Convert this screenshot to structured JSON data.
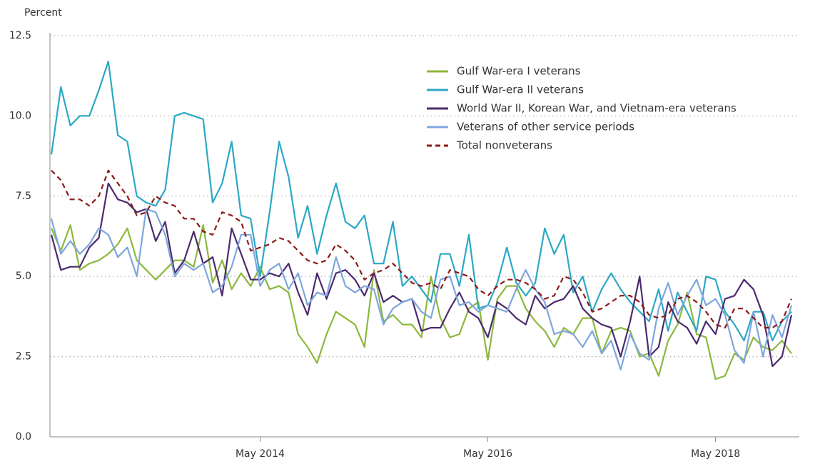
{
  "chart_data": {
    "type": "line",
    "y_label": "Percent",
    "x": [
      "2012-07",
      "2012-08",
      "2012-09",
      "2012-10",
      "2012-11",
      "2012-12",
      "2013-01",
      "2013-02",
      "2013-03",
      "2013-04",
      "2013-05",
      "2013-06",
      "2013-07",
      "2013-08",
      "2013-09",
      "2013-10",
      "2013-11",
      "2013-12",
      "2014-01",
      "2014-02",
      "2014-03",
      "2014-04",
      "2014-05",
      "2014-06",
      "2014-07",
      "2014-08",
      "2014-09",
      "2014-10",
      "2014-11",
      "2014-12",
      "2015-01",
      "2015-02",
      "2015-03",
      "2015-04",
      "2015-05",
      "2015-06",
      "2015-07",
      "2015-08",
      "2015-09",
      "2015-10",
      "2015-11",
      "2015-12",
      "2016-01",
      "2016-02",
      "2016-03",
      "2016-04",
      "2016-05",
      "2016-06",
      "2016-07",
      "2016-08",
      "2016-09",
      "2016-10",
      "2016-11",
      "2016-12",
      "2017-01",
      "2017-02",
      "2017-03",
      "2017-04",
      "2017-05",
      "2017-06",
      "2017-07",
      "2017-08",
      "2017-09",
      "2017-10",
      "2017-11",
      "2017-12",
      "2018-01",
      "2018-02",
      "2018-03",
      "2018-04",
      "2018-05",
      "2018-06",
      "2018-07",
      "2018-08",
      "2018-09",
      "2018-10",
      "2018-11",
      "2018-12",
      "2019-01"
    ],
    "xticks": [
      {
        "value": "2014-05",
        "label": "May 2014"
      },
      {
        "value": "2016-05",
        "label": "May 2016"
      },
      {
        "value": "2018-05",
        "label": "May 2018"
      }
    ],
    "ylim": [
      0,
      12.5
    ],
    "yticks": [
      {
        "value": 0,
        "label": "0.0"
      },
      {
        "value": 2.5,
        "label": "2.5"
      },
      {
        "value": 5,
        "label": "5.0"
      },
      {
        "value": 7.5,
        "label": "7.5"
      },
      {
        "value": 10,
        "label": "10.0"
      },
      {
        "value": 12.5,
        "label": "12.5"
      }
    ],
    "grid": true,
    "legend": "upper right",
    "series": [
      {
        "name": "Gulf War-era I veterans",
        "color": "#8cb83c",
        "dash": false,
        "values": [
          6.5,
          5.8,
          6.6,
          5.2,
          5.4,
          5.5,
          5.7,
          6.0,
          6.5,
          5.5,
          5.2,
          4.9,
          5.2,
          5.5,
          5.5,
          5.3,
          6.6,
          4.8,
          5.5,
          4.6,
          5.1,
          4.7,
          5.3,
          4.6,
          4.7,
          4.5,
          3.2,
          2.8,
          2.3,
          3.2,
          3.9,
          3.7,
          3.5,
          2.8,
          5.2,
          3.6,
          3.8,
          3.5,
          3.5,
          3.1,
          5.0,
          3.7,
          3.1,
          3.2,
          4.0,
          4.2,
          2.4,
          4.3,
          4.7,
          4.7,
          4.0,
          3.6,
          3.3,
          2.8,
          3.4,
          3.2,
          3.7,
          3.7,
          2.6,
          3.3,
          3.4,
          3.3,
          2.5,
          2.6,
          1.9,
          3.0,
          3.5,
          4.5,
          3.2,
          3.1,
          1.8,
          1.9,
          2.6,
          2.4,
          3.1,
          2.8,
          2.7,
          3.0,
          2.6
        ]
      },
      {
        "name": "Gulf War-era II veterans",
        "color": "#2ba8c4",
        "dash": false,
        "values": [
          8.8,
          10.9,
          9.7,
          10.0,
          10.0,
          10.8,
          11.7,
          9.4,
          9.2,
          7.5,
          7.3,
          7.2,
          7.7,
          10.0,
          10.1,
          10.0,
          9.9,
          7.3,
          7.9,
          9.2,
          6.9,
          6.8,
          5.0,
          7.0,
          9.2,
          8.1,
          6.2,
          7.2,
          5.7,
          6.9,
          7.9,
          6.7,
          6.5,
          6.9,
          5.4,
          5.4,
          6.7,
          4.7,
          5.0,
          4.6,
          4.2,
          5.7,
          5.7,
          4.7,
          6.3,
          4.0,
          4.1,
          4.8,
          5.9,
          4.8,
          4.4,
          4.8,
          6.5,
          5.7,
          6.3,
          4.5,
          5.0,
          3.9,
          4.6,
          5.1,
          4.6,
          4.2,
          3.9,
          3.6,
          4.6,
          3.3,
          4.5,
          3.9,
          3.3,
          5.0,
          4.9,
          3.9,
          3.5,
          3.0,
          3.9,
          3.9,
          3.0,
          3.6,
          3.9
        ]
      },
      {
        "name": "World War II, Korean War, and Vietnam-era veterans",
        "color": "#4b2a6e",
        "dash": false,
        "values": [
          6.3,
          5.2,
          5.3,
          5.3,
          5.9,
          6.2,
          7.9,
          7.4,
          7.3,
          7.0,
          7.1,
          6.1,
          6.7,
          5.1,
          5.5,
          6.4,
          5.4,
          5.6,
          4.4,
          6.5,
          5.7,
          4.9,
          4.9,
          5.1,
          5.0,
          5.4,
          4.5,
          3.8,
          5.1,
          4.3,
          5.1,
          5.2,
          4.9,
          4.4,
          5.1,
          4.2,
          4.4,
          4.2,
          4.3,
          3.3,
          3.4,
          3.4,
          4.0,
          4.5,
          3.9,
          3.7,
          3.1,
          4.2,
          4.0,
          3.7,
          3.5,
          4.4,
          4.0,
          4.2,
          4.3,
          4.7,
          4.0,
          3.7,
          3.5,
          3.4,
          2.5,
          3.6,
          5.0,
          2.5,
          2.8,
          4.2,
          3.6,
          3.4,
          2.9,
          3.6,
          3.2,
          4.3,
          4.4,
          4.9,
          4.6,
          3.8,
          2.2,
          2.5,
          3.8
        ]
      },
      {
        "name": "Veterans of other service periods",
        "color": "#7fa6dc",
        "dash": false,
        "values": [
          6.8,
          5.7,
          6.1,
          5.7,
          6.0,
          6.5,
          6.3,
          5.6,
          5.9,
          5.0,
          7.1,
          7.0,
          6.3,
          5.0,
          5.4,
          5.2,
          5.4,
          4.5,
          4.7,
          5.3,
          6.3,
          6.3,
          4.7,
          5.2,
          5.4,
          4.6,
          5.1,
          4.1,
          4.5,
          4.4,
          5.6,
          4.7,
          4.5,
          4.7,
          4.6,
          3.5,
          4.0,
          4.2,
          4.3,
          3.9,
          3.7,
          4.9,
          5.0,
          4.1,
          4.2,
          3.9,
          4.1,
          4.0,
          3.9,
          4.6,
          5.2,
          4.6,
          4.2,
          3.2,
          3.3,
          3.2,
          2.8,
          3.3,
          2.6,
          3.0,
          2.1,
          3.2,
          2.6,
          2.4,
          4.0,
          4.8,
          3.8,
          4.4,
          4.9,
          4.1,
          4.3,
          3.8,
          2.7,
          2.3,
          3.9,
          2.5,
          3.8,
          3.1,
          4.1
        ]
      },
      {
        "name": "Total nonveterans",
        "color": "#8b1a1a",
        "dash": true,
        "values": [
          8.3,
          8.0,
          7.4,
          7.4,
          7.2,
          7.5,
          8.3,
          7.9,
          7.5,
          6.9,
          7.0,
          7.5,
          7.3,
          7.2,
          6.8,
          6.8,
          6.4,
          6.3,
          7.0,
          6.9,
          6.7,
          5.8,
          5.9,
          6.0,
          6.2,
          6.1,
          5.8,
          5.5,
          5.4,
          5.5,
          6.0,
          5.8,
          5.5,
          4.9,
          5.1,
          5.2,
          5.4,
          5.1,
          4.8,
          4.7,
          4.8,
          4.6,
          5.2,
          5.1,
          5.0,
          4.6,
          4.4,
          4.7,
          4.9,
          4.9,
          4.8,
          4.6,
          4.3,
          4.4,
          5.0,
          4.9,
          4.5,
          3.9,
          4.0,
          4.2,
          4.4,
          4.4,
          4.2,
          3.8,
          3.7,
          3.8,
          4.3,
          4.4,
          4.2,
          3.9,
          3.5,
          3.4,
          4.0,
          4.0,
          3.7,
          3.4,
          3.4,
          3.6,
          4.3
        ]
      }
    ]
  }
}
